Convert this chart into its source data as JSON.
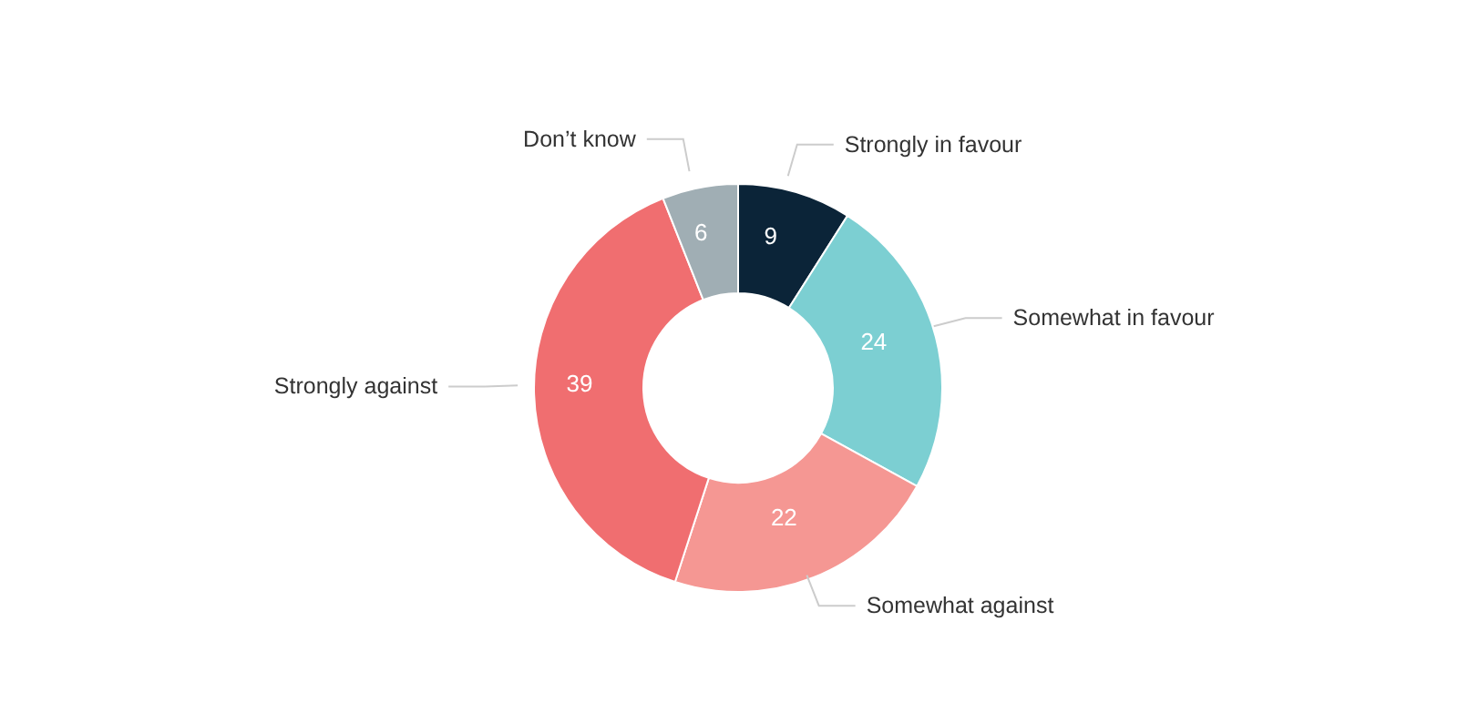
{
  "chart_data": {
    "type": "donut",
    "categories": [
      "Strongly in favour",
      "Somewhat in favour",
      "Somewhat against",
      "Strongly against",
      "Don’t know"
    ],
    "values": [
      9,
      24,
      22,
      39,
      6
    ],
    "colors": [
      "#0b2438",
      "#7ccfd2",
      "#f59793",
      "#f06e70",
      "#a0aeb4"
    ],
    "data_labels": true
  }
}
